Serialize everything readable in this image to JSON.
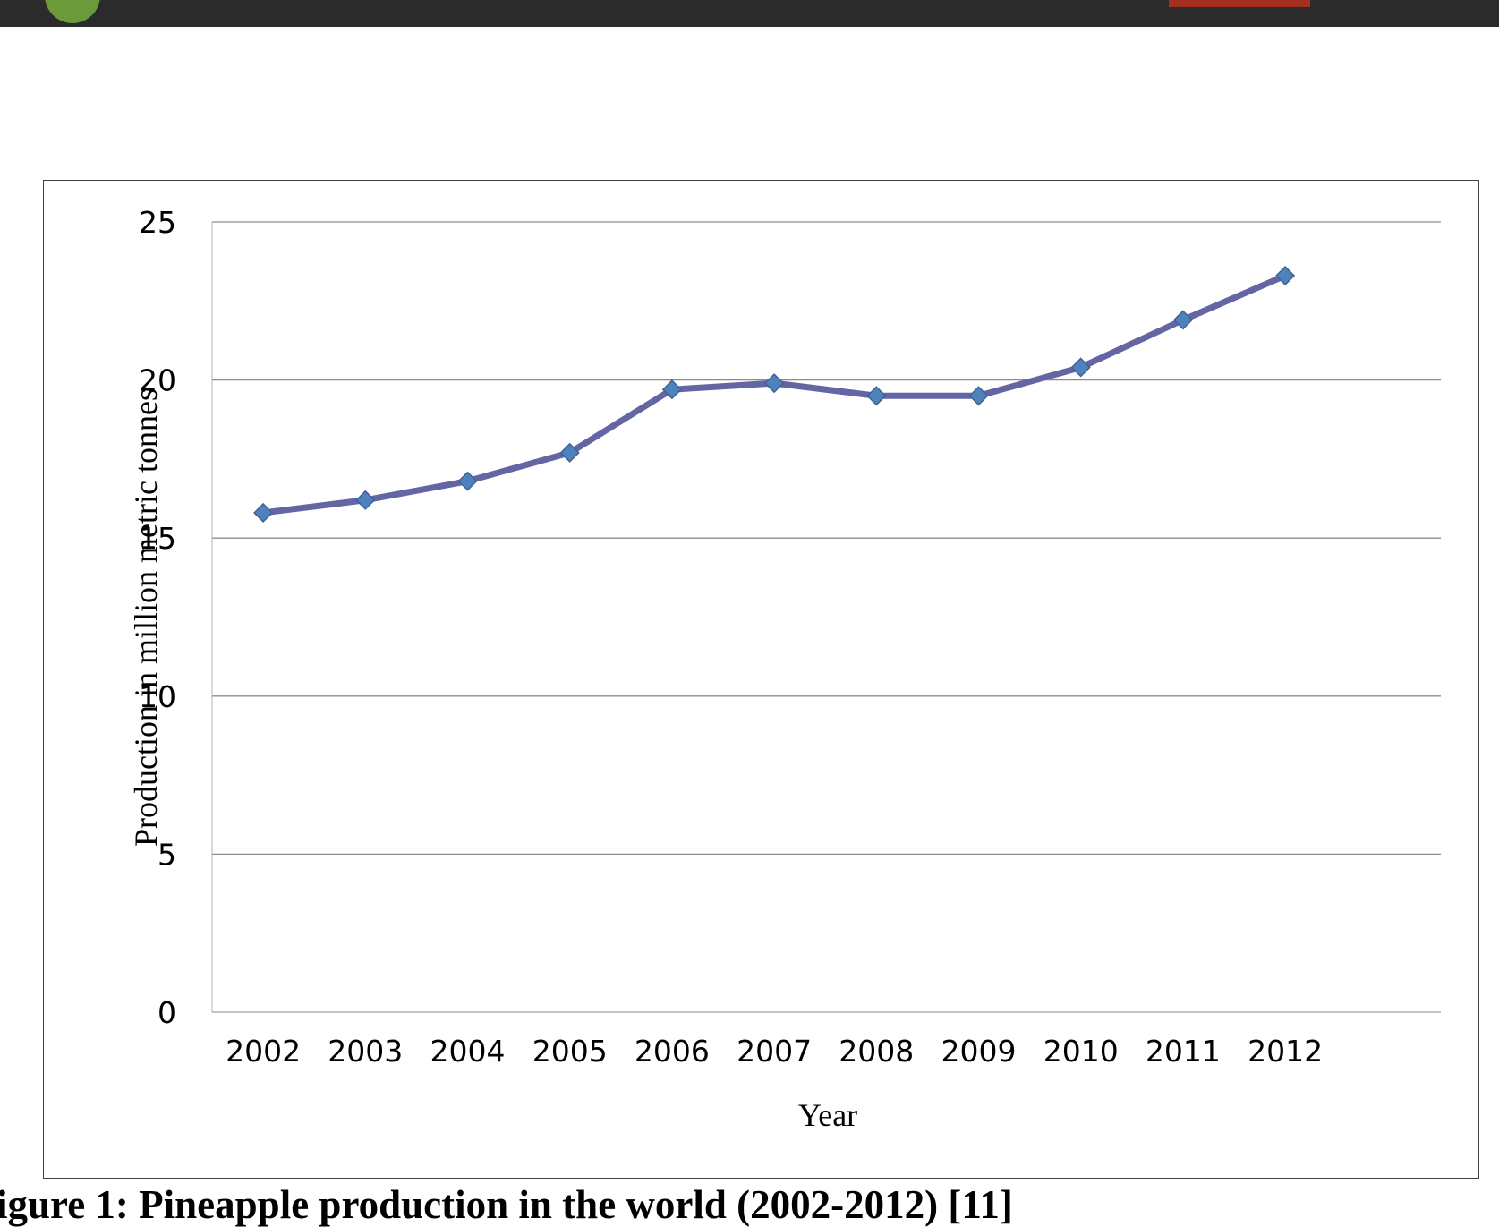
{
  "figure_caption": "igure 1: Pineapple production in the world (2002-2012) [11]",
  "chart_data": {
    "type": "line",
    "title": "",
    "xlabel": "Year",
    "ylabel": "Production in million metric tonnes",
    "categories": [
      "2002",
      "2003",
      "2004",
      "2005",
      "2006",
      "2007",
      "2008",
      "2009",
      "2010",
      "2011",
      "2012"
    ],
    "series": [
      {
        "values": [
          15.8,
          16.2,
          16.8,
          17.7,
          19.7,
          19.9,
          19.5,
          19.5,
          20.4,
          21.9,
          23.3
        ],
        "color": "#6366a3",
        "marker": "diamond",
        "marker_color": "#4f81bd"
      }
    ],
    "ylim": [
      0,
      25
    ],
    "yticks": [
      "0",
      "5",
      "10",
      "15",
      "20",
      "25"
    ],
    "grid": "horizontal",
    "legend": "none"
  }
}
